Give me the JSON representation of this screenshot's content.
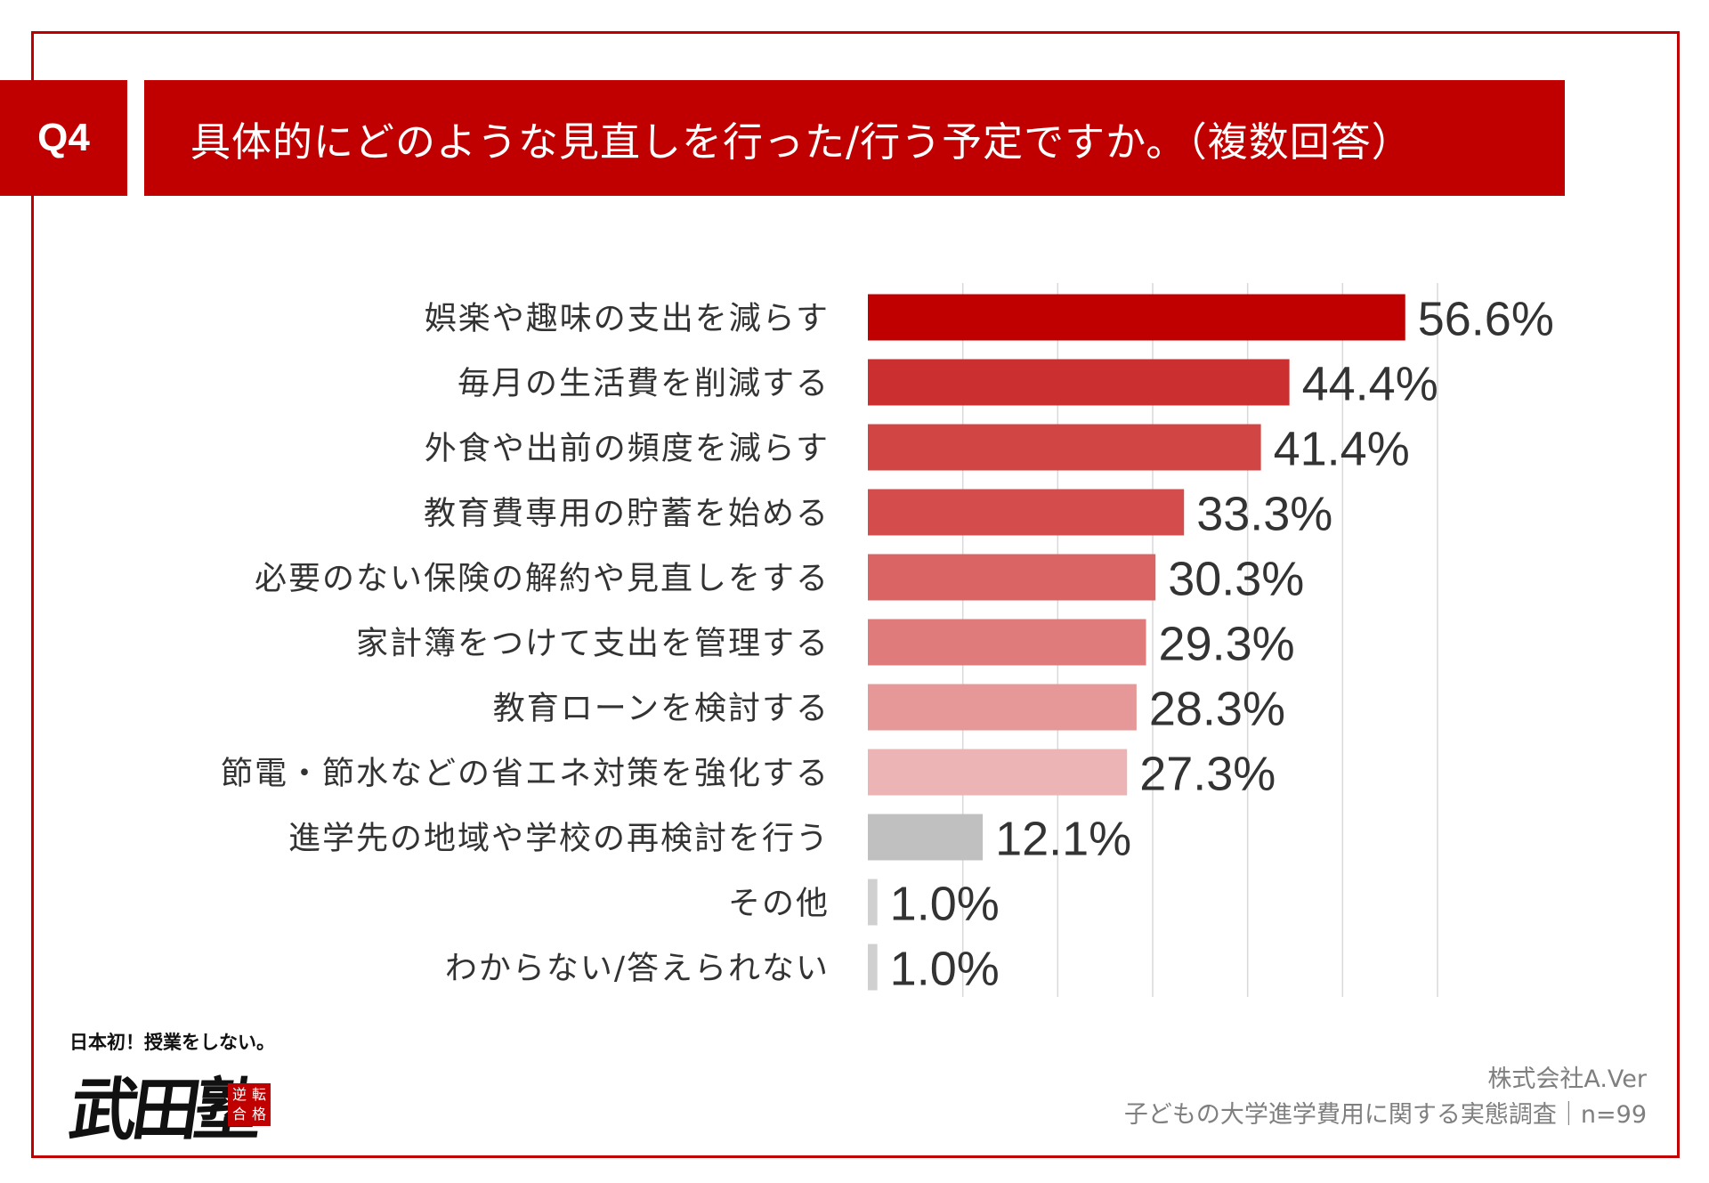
{
  "question": {
    "badge": "Q4",
    "title": "具体的にどのような見直しを行った/行う予定ですか。（複数回答）"
  },
  "chart_data": {
    "type": "bar",
    "orientation": "horizontal",
    "categories": [
      "娯楽や趣味の支出を減らす",
      "毎月の生活費を削減する",
      "外食や出前の頻度を減らす",
      "教育費専用の貯蓄を始める",
      "必要のない保険の解約や見直しをする",
      "家計簿をつけて支出を管理する",
      "教育ローンを検討する",
      "節電・節水などの省エネ対策を強化する",
      "進学先の地域や学校の再検討を行う",
      "その他",
      "わからない/答えられない"
    ],
    "values": [
      56.6,
      44.4,
      41.4,
      33.3,
      30.3,
      29.3,
      28.3,
      27.3,
      12.1,
      1.0,
      1.0
    ],
    "value_labels": [
      "56.6%",
      "44.4%",
      "41.4%",
      "33.3%",
      "30.3%",
      "29.3%",
      "28.3%",
      "27.3%",
      "12.1%",
      "1.0%",
      "1.0%"
    ],
    "colors": [
      "#c00000",
      "#cb2f2f",
      "#d14545",
      "#d54c4c",
      "#da6464",
      "#df7b7b",
      "#e69797",
      "#ecb4b4",
      "#c0c0c0",
      "#d0d0d0",
      "#d0d0d0"
    ],
    "xlim": [
      0,
      60
    ],
    "gridlines": [
      0,
      10,
      20,
      30,
      40,
      50,
      60
    ],
    "grid": true,
    "legend": "none"
  },
  "logo": {
    "tagline": "日本初！授業をしない。",
    "name": "武田塾",
    "seal": [
      "逆",
      "転",
      "合",
      "格"
    ]
  },
  "footer": {
    "company": "株式会社A.Ver",
    "survey": "子どもの大学進学費用に関する実態調査｜n=99"
  },
  "colors": {
    "accent": "#c00000",
    "footer_text": "#7f7f7f"
  }
}
